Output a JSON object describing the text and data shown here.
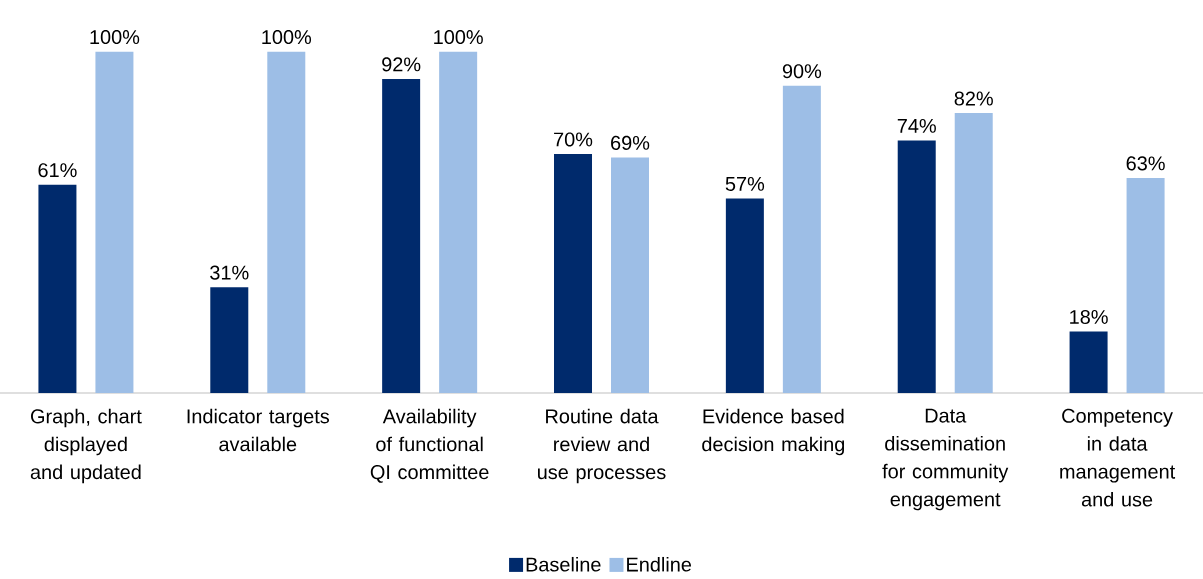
{
  "chart_data": {
    "type": "bar",
    "categories": [
      "Graph, chart displayed and updated",
      "Indicator targets available",
      "Availability of functional QI committee",
      "Routine data review and use processes",
      "Evidence based decision making",
      "Data dissemination for community engagement",
      "Competency in data management and use"
    ],
    "series": [
      {
        "name": "Baseline",
        "color": "#002a6c",
        "values": [
          61,
          31,
          92,
          70,
          57,
          74,
          18
        ],
        "value_labels": [
          "61%",
          "31%",
          "92%",
          "70%",
          "57%",
          "74%",
          "18%"
        ]
      },
      {
        "name": "Endline",
        "color": "#9dbee6",
        "values": [
          100,
          100,
          100,
          69,
          90,
          82,
          63
        ],
        "value_labels": [
          "100%",
          "100%",
          "100%",
          "69%",
          "90%",
          "82%",
          "63%"
        ]
      }
    ],
    "legend": "bottom"
  }
}
